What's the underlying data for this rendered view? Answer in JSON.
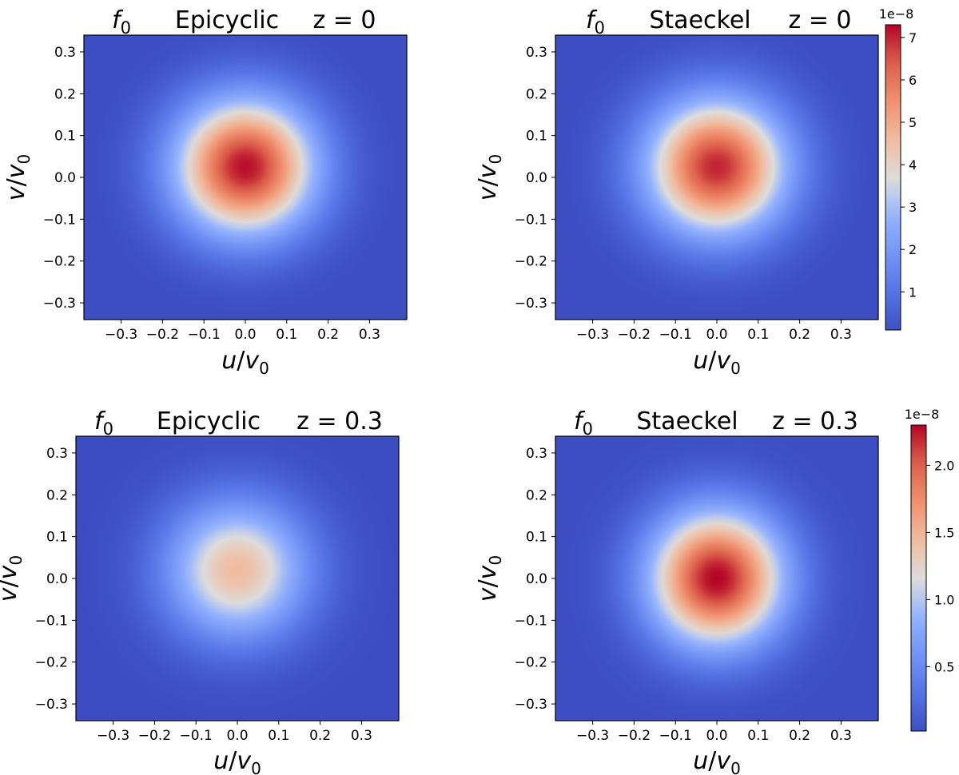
{
  "chart_data": [
    {
      "type": "heatmap",
      "title": {
        "func": "f",
        "func_sub": "0",
        "method": "Epicyclic",
        "zlabel": "z = 0"
      },
      "xlabel": {
        "a": "u",
        "b": "v",
        "b_sub": "0"
      },
      "ylabel": {
        "a": "v",
        "b": "v",
        "b_sub": "0"
      },
      "xlim": [
        -0.39,
        0.39
      ],
      "ylim": [
        -0.34,
        0.34
      ],
      "xticks": [
        -0.3,
        -0.2,
        -0.1,
        0.0,
        0.1,
        0.2,
        0.3
      ],
      "xtick_labels": [
        "−0.3",
        "−0.2",
        "−0.1",
        "0.0",
        "0.1",
        "0.2",
        "0.3"
      ],
      "yticks": [
        0.3,
        0.2,
        0.1,
        0.0,
        -0.1,
        -0.2,
        -0.3
      ],
      "ytick_labels": [
        "0.3",
        "0.2",
        "0.1",
        "0.0",
        "−0.1",
        "−0.2",
        "−0.3"
      ],
      "peak": {
        "u": 0.0,
        "v": 0.025,
        "value": 7.2e-08
      },
      "dispersion": {
        "sigma_u": 0.12,
        "sigma_v": 0.115
      },
      "background_value": 0.0,
      "color_max": 7.3e-08,
      "colormap": "coolwarm"
    },
    {
      "type": "heatmap",
      "title": {
        "func": "f",
        "func_sub": "0",
        "method": "Staeckel",
        "zlabel": "z = 0"
      },
      "xlabel": {
        "a": "u",
        "b": "v",
        "b_sub": "0"
      },
      "ylabel": {
        "a": "v",
        "b": "v",
        "b_sub": "0"
      },
      "xlim": [
        -0.39,
        0.39
      ],
      "ylim": [
        -0.34,
        0.34
      ],
      "xticks": [
        -0.3,
        -0.2,
        -0.1,
        0.0,
        0.1,
        0.2,
        0.3
      ],
      "xtick_labels": [
        "−0.3",
        "−0.2",
        "−0.1",
        "0.0",
        "0.1",
        "0.2",
        "0.3"
      ],
      "yticks": [
        0.3,
        0.2,
        0.1,
        0.0,
        -0.1,
        -0.2,
        -0.3
      ],
      "ytick_labels": [
        "0.3",
        "0.2",
        "0.1",
        "0.0",
        "−0.1",
        "−0.2",
        "−0.3"
      ],
      "peak": {
        "u": 0.0,
        "v": 0.025,
        "value": 7e-08
      },
      "dispersion": {
        "sigma_u": 0.12,
        "sigma_v": 0.115
      },
      "background_value": 0.0,
      "color_max": 7.3e-08,
      "colormap": "coolwarm",
      "colorbar": {
        "exponent_label": "1e−8",
        "vmin": 0.1,
        "vmax": 7.3,
        "ticks": [
          1,
          2,
          3,
          4,
          5,
          6,
          7
        ],
        "tick_labels": [
          "1",
          "2",
          "3",
          "4",
          "5",
          "6",
          "7"
        ]
      }
    },
    {
      "type": "heatmap",
      "title": {
        "func": "f",
        "func_sub": "0",
        "method": "Epicyclic",
        "zlabel": "z = 0.3"
      },
      "xlabel": {
        "a": "u",
        "b": "v",
        "b_sub": "0"
      },
      "ylabel": {
        "a": "v",
        "b": "v",
        "b_sub": "0"
      },
      "xlim": [
        -0.39,
        0.39
      ],
      "ylim": [
        -0.34,
        0.34
      ],
      "xticks": [
        -0.3,
        -0.2,
        -0.1,
        0.0,
        0.1,
        0.2,
        0.3
      ],
      "xtick_labels": [
        "−0.3",
        "−0.2",
        "−0.1",
        "0.0",
        "0.1",
        "0.2",
        "0.3"
      ],
      "yticks": [
        0.3,
        0.2,
        0.1,
        0.0,
        -0.1,
        -0.2,
        -0.3
      ],
      "ytick_labels": [
        "0.3",
        "0.2",
        "0.1",
        "0.0",
        "−0.1",
        "−0.2",
        "−0.3"
      ],
      "peak": {
        "u": 0.0,
        "v": 0.02,
        "value": 1.45e-08
      },
      "dispersion": {
        "sigma_u": 0.12,
        "sigma_v": 0.115
      },
      "background_value": 0.0,
      "color_max": 2.3e-08,
      "colormap": "coolwarm"
    },
    {
      "type": "heatmap",
      "title": {
        "func": "f",
        "func_sub": "0",
        "method": "Staeckel",
        "zlabel": "z = 0.3"
      },
      "xlabel": {
        "a": "u",
        "b": "v",
        "b_sub": "0"
      },
      "ylabel": {
        "a": "v",
        "b": "v",
        "b_sub": "0"
      },
      "xlim": [
        -0.39,
        0.39
      ],
      "ylim": [
        -0.34,
        0.34
      ],
      "xticks": [
        -0.3,
        -0.2,
        -0.1,
        0.0,
        0.1,
        0.2,
        0.3
      ],
      "xtick_labels": [
        "−0.3",
        "−0.2",
        "−0.1",
        "0.0",
        "0.1",
        "0.2",
        "0.3"
      ],
      "yticks": [
        0.3,
        0.2,
        0.1,
        0.0,
        -0.1,
        -0.2,
        -0.3
      ],
      "ytick_labels": [
        "0.3",
        "0.2",
        "0.1",
        "0.0",
        "−0.1",
        "−0.2",
        "−0.3"
      ],
      "peak": {
        "u": 0.0,
        "v": 0.0,
        "value": 2.3e-08
      },
      "dispersion": {
        "sigma_u": 0.115,
        "sigma_v": 0.115
      },
      "background_value": 0.0,
      "color_max": 2.3e-08,
      "colormap": "coolwarm",
      "colorbar": {
        "exponent_label": "1e−8",
        "vmin": 0.02,
        "vmax": 2.3,
        "ticks": [
          0.5,
          1.0,
          1.5,
          2.0
        ],
        "tick_labels": [
          "0.5",
          "1.0",
          "1.5",
          "2.0"
        ]
      }
    }
  ],
  "colors": {
    "coolwarm_low": "#3b4cc0",
    "coolwarm_mid": "#dddddd",
    "coolwarm_high": "#b40426"
  }
}
